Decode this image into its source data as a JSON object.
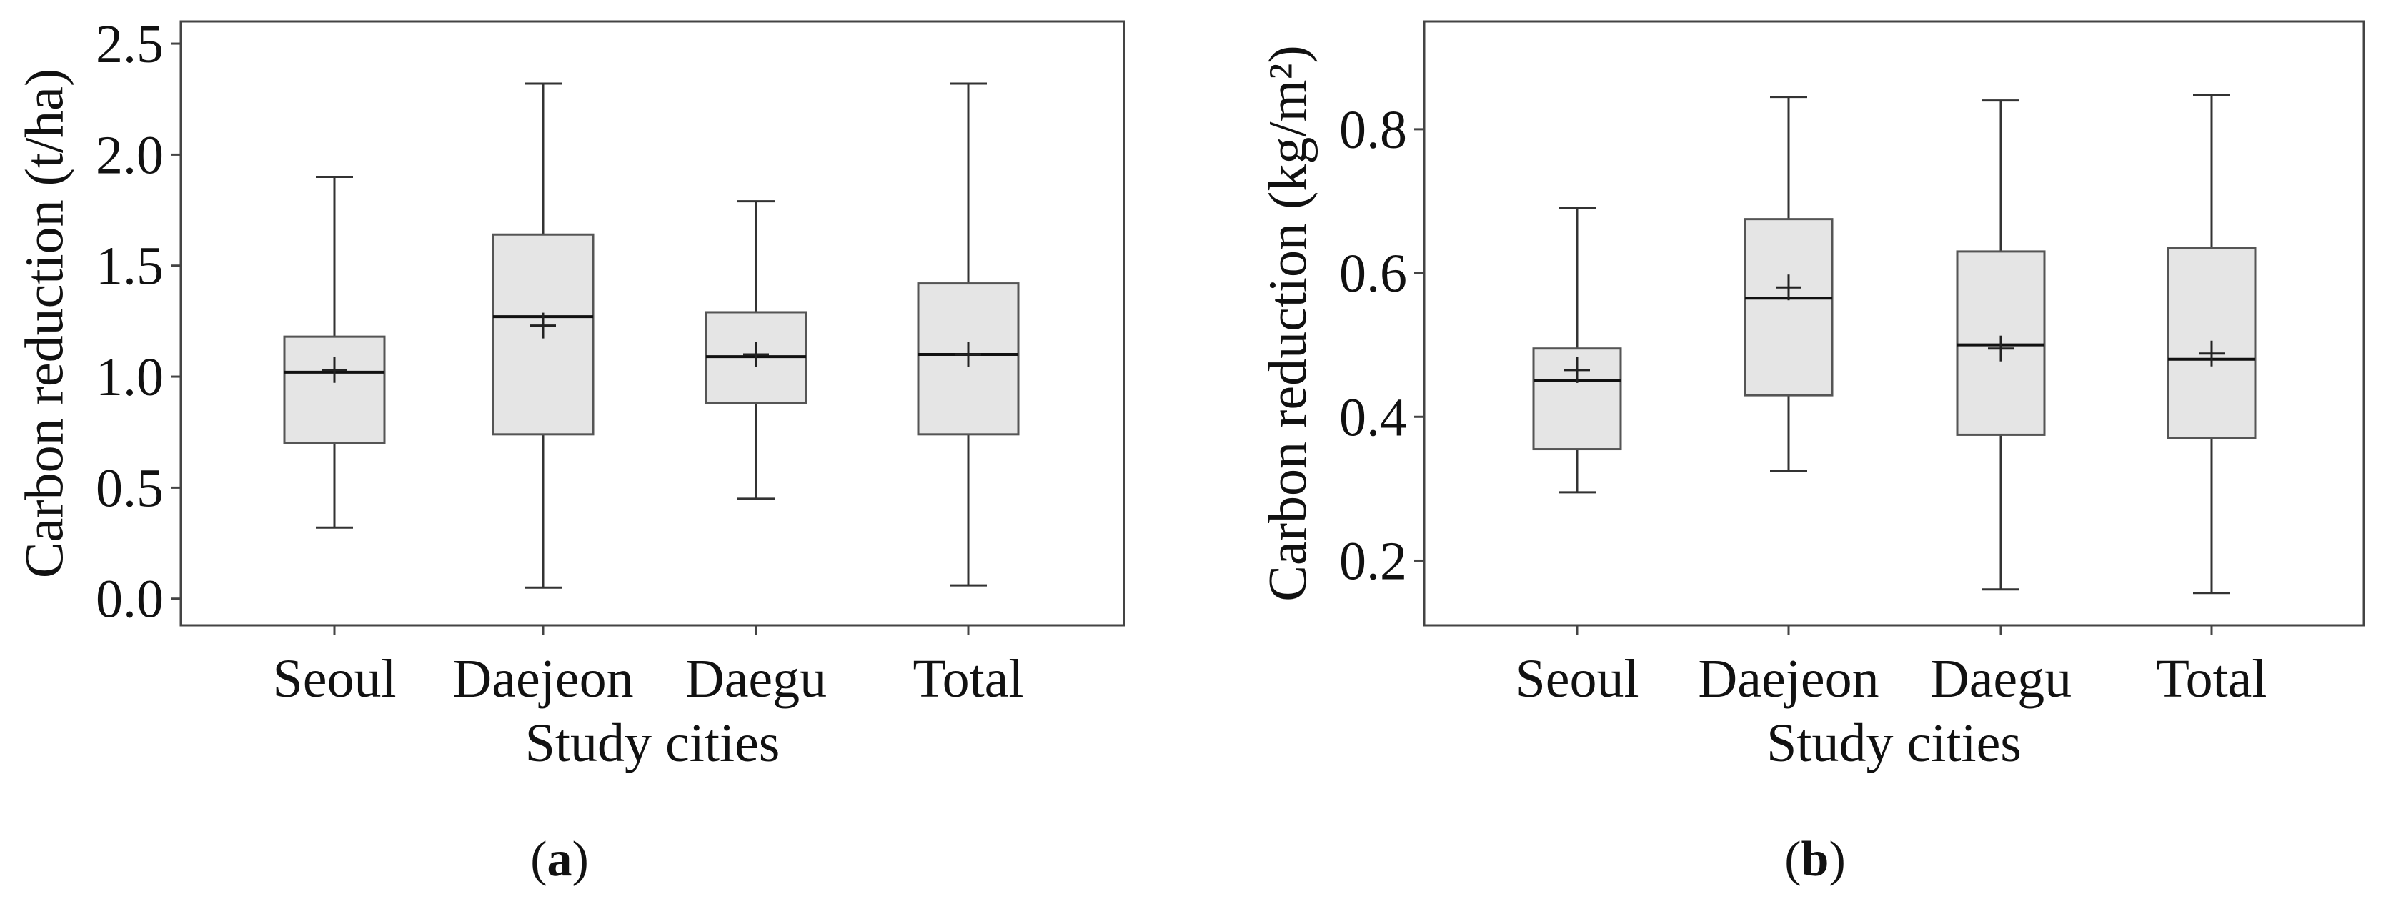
{
  "chart_data": [
    {
      "type": "box",
      "panel_label": "a",
      "xlabel": "Study cities",
      "ylabel": "Carbon reduction (t/ha)",
      "categories": [
        "Seoul",
        "Daejeon",
        "Daegu",
        "Total"
      ],
      "ylim": [
        -0.12,
        2.6
      ],
      "yticks": [
        0.0,
        0.5,
        1.0,
        1.5,
        2.0,
        2.5
      ],
      "ytick_labels": [
        "0.0",
        "0.5",
        "1.0",
        "1.5",
        "2.0",
        "2.5"
      ],
      "grid": false,
      "boxes": [
        {
          "min": 0.32,
          "q1": 0.7,
          "median": 1.02,
          "q3": 1.18,
          "max": 1.9,
          "mean": 1.03
        },
        {
          "min": 0.05,
          "q1": 0.74,
          "median": 1.27,
          "q3": 1.64,
          "max": 2.32,
          "mean": 1.23
        },
        {
          "min": 0.45,
          "q1": 0.88,
          "median": 1.09,
          "q3": 1.29,
          "max": 1.79,
          "mean": 1.1
        },
        {
          "min": 0.06,
          "q1": 0.74,
          "median": 1.1,
          "q3": 1.42,
          "max": 2.32,
          "mean": 1.1
        }
      ]
    },
    {
      "type": "box",
      "panel_label": "b",
      "xlabel": "Study cities",
      "ylabel": "Carbon reduction (kg/m²)",
      "categories": [
        "Seoul",
        "Daejeon",
        "Daegu",
        "Total"
      ],
      "ylim": [
        0.11,
        0.95
      ],
      "yticks": [
        0.2,
        0.4,
        0.6,
        0.8
      ],
      "ytick_labels": [
        "0.2",
        "0.4",
        "0.6",
        "0.8"
      ],
      "grid": false,
      "boxes": [
        {
          "min": 0.295,
          "q1": 0.355,
          "median": 0.45,
          "q3": 0.495,
          "max": 0.69,
          "mean": 0.465
        },
        {
          "min": 0.325,
          "q1": 0.43,
          "median": 0.565,
          "q3": 0.675,
          "max": 0.845,
          "mean": 0.58
        },
        {
          "min": 0.16,
          "q1": 0.375,
          "median": 0.5,
          "q3": 0.63,
          "max": 0.84,
          "mean": 0.495
        },
        {
          "min": 0.155,
          "q1": 0.37,
          "median": 0.48,
          "q3": 0.635,
          "max": 0.848,
          "mean": 0.488
        }
      ]
    }
  ],
  "style": {
    "box_fill": "#e5e5e5",
    "box_stroke": "#555555",
    "whisker_color": "#333333",
    "frame_color": "#444444"
  }
}
